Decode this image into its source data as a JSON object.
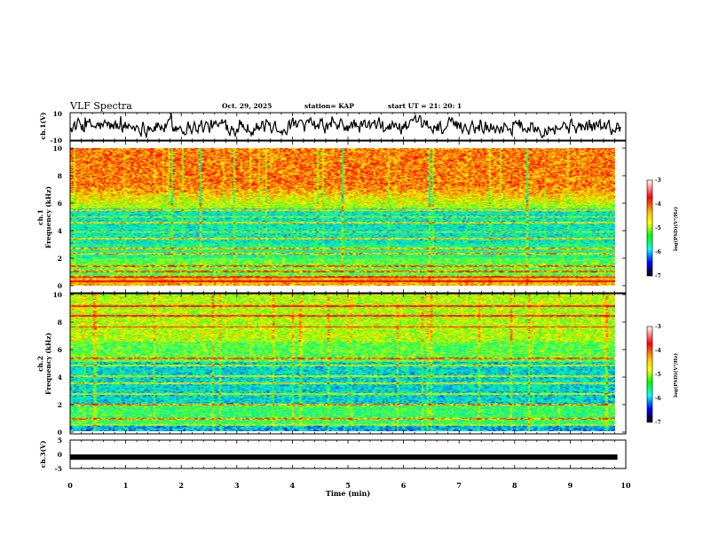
{
  "header": {
    "title": "VLF Spectra",
    "date": "Oct. 29, 2025",
    "station": "station= KAP",
    "start_ut": "start  UT  =    21: 20: 1"
  },
  "chart_data": [
    {
      "type": "line",
      "id": "ch1_waveform",
      "ylabel": "ch.1(V)",
      "ylim": [
        -10,
        10
      ],
      "yticks": [
        "10",
        "-10"
      ],
      "xlim": [
        0,
        10
      ],
      "note": "noisy broadband waveform, amplitude roughly within +/-6 V"
    },
    {
      "type": "heatmap",
      "id": "ch1_spectrogram",
      "ylabel": "ch.1 Frequency (kHz)",
      "ylim": [
        0,
        10
      ],
      "yticks": [
        "0",
        "2",
        "4",
        "6",
        "8",
        "10"
      ],
      "xlim": [
        0,
        9.85
      ],
      "colorbar": {
        "label": "log(PSD)(V²/Hz)",
        "range": [
          -7,
          -3
        ],
        "ticks": [
          "-3",
          "-4",
          "-5",
          "-6",
          "-7"
        ]
      },
      "bands_khz": [
        0.3,
        0.6,
        1.0,
        1.4,
        2.3,
        2.7,
        3.4,
        3.9,
        4.6,
        5.0,
        5.5
      ]
    },
    {
      "type": "heatmap",
      "id": "ch2_spectrogram",
      "ylabel": "ch.2 Frequency (kHz)",
      "ylim": [
        0,
        10
      ],
      "yticks": [
        "0",
        "2",
        "4",
        "6",
        "8",
        "10"
      ],
      "xlim": [
        0,
        9.85
      ],
      "colorbar": {
        "label": "log(PSD)(V²/Hz)",
        "range": [
          -7,
          -3
        ],
        "ticks": [
          "-3",
          "-4",
          "-5",
          "-6",
          "-7"
        ]
      },
      "bands_khz": [
        0.4,
        0.9,
        1.9,
        2.7,
        3.5,
        4.0,
        4.8,
        5.3,
        7.6,
        8.4,
        9.1
      ]
    },
    {
      "type": "line",
      "id": "ch3_trace",
      "ylabel": "ch.3(V)",
      "ylim": [
        -5,
        5
      ],
      "yticks": [
        "5",
        "0",
        "-5"
      ],
      "xlim": [
        0,
        10
      ],
      "xlabel": "Time  (min)",
      "xticks": [
        "0",
        "1",
        "2",
        "3",
        "4",
        "5",
        "6",
        "7",
        "8",
        "9",
        "10"
      ],
      "values": {
        "level": -1,
        "thickness": 1
      }
    }
  ],
  "colors": {
    "red": "#ff0000",
    "orange": "#ff8800",
    "yellow": "#ffff00",
    "green": "#00ff00",
    "cyan": "#00ffff",
    "blue": "#0000ff",
    "navy": "#000080"
  }
}
